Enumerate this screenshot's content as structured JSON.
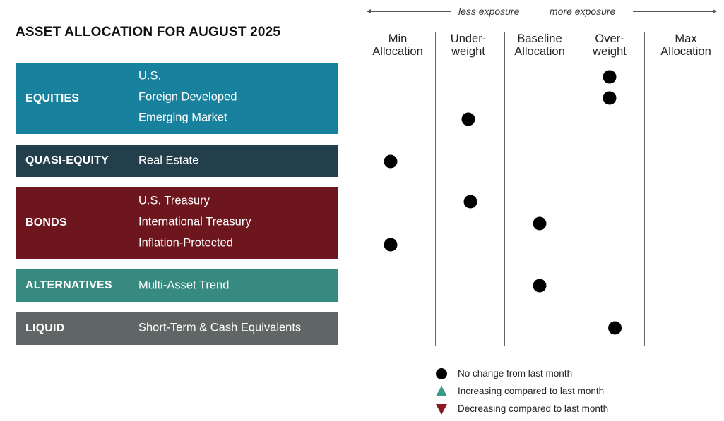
{
  "chart_data": {
    "type": "scatter",
    "title": "ASSET ALLOCATION FOR AUGUST 2025",
    "x_levels": [
      [
        "Min",
        "Allocation"
      ],
      [
        "Under-",
        "weight"
      ],
      [
        "Baseline",
        "Allocation"
      ],
      [
        "Over-",
        "weight"
      ],
      [
        "Max",
        "Allocation"
      ]
    ],
    "axis_hint": {
      "left": "less exposure",
      "right": "more exposure"
    },
    "categories": [
      {
        "name": "EQUITIES",
        "color": "#17819e",
        "items": [
          {
            "label": "U.S.",
            "level": 3.0,
            "change": "none"
          },
          {
            "label": "Foreign Developed",
            "level": 3.0,
            "change": "none"
          },
          {
            "label": "Emerging Market",
            "level": 1.0,
            "change": "none"
          }
        ]
      },
      {
        "name": "QUASI-EQUITY",
        "color": "#233f4b",
        "items": [
          {
            "label": "Real Estate",
            "level": -0.1,
            "change": "none"
          }
        ]
      },
      {
        "name": "BONDS",
        "color": "#6e161e",
        "items": [
          {
            "label": "U.S. Treasury",
            "level": 1.03,
            "change": "none"
          },
          {
            "label": "International Treasury",
            "level": 2.0,
            "change": "none"
          },
          {
            "label": "Inflation-Protected",
            "level": -0.1,
            "change": "none"
          }
        ]
      },
      {
        "name": "ALTERNATIVES",
        "color": "#368a80",
        "items": [
          {
            "label": "Multi-Asset Trend",
            "level": 2.0,
            "change": "none"
          }
        ]
      },
      {
        "name": "LIQUID",
        "color": "#606665",
        "items": [
          {
            "label": "Short-Term & Cash Equivalents",
            "level": 3.07,
            "change": "none"
          }
        ]
      }
    ],
    "legend": [
      {
        "symbol": "circle",
        "label": "No change from last month",
        "color": "#000000"
      },
      {
        "symbol": "triangle-up",
        "label": "Increasing compared to last month",
        "color": "#369b8a"
      },
      {
        "symbol": "triangle-down",
        "label": "Decreasing compared to last month",
        "color": "#8a1a22"
      }
    ]
  }
}
